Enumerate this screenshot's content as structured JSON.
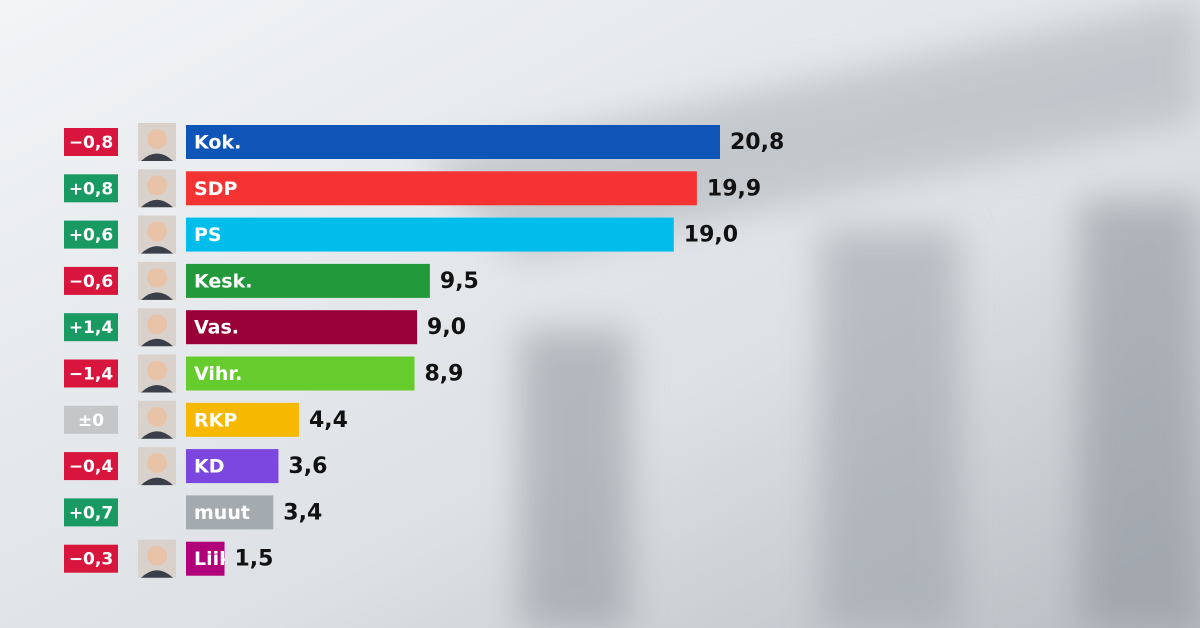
{
  "chart_data": {
    "type": "bar",
    "orientation": "horizontal",
    "categories": [
      "Kok.",
      "SDP",
      "PS",
      "Kesk.",
      "Vas.",
      "Vihr.",
      "RKP",
      "KD",
      "muut",
      "Liik"
    ],
    "values": [
      20.8,
      19.9,
      19.0,
      9.5,
      9.0,
      8.9,
      4.4,
      3.6,
      3.4,
      1.5
    ],
    "value_labels": [
      "20,8",
      "19,9",
      "19,0",
      "9,5",
      "9,0",
      "8,9",
      "4,4",
      "3,6",
      "3,4",
      "1,5"
    ],
    "colors": [
      "#0f55b8",
      "#f53333",
      "#00bdec",
      "#229a3c",
      "#9a0038",
      "#66cc2e",
      "#f6b800",
      "#7c47e0",
      "#a3abb1",
      "#b0007a"
    ],
    "change_values": [
      -0.8,
      0.8,
      0.6,
      -0.6,
      1.4,
      -1.4,
      0,
      -0.4,
      0.7,
      -0.3
    ],
    "change_labels": [
      "−0,8",
      "+0,8",
      "+0,6",
      "−0,6",
      "+1,4",
      "−1,4",
      "±0",
      "−0,4",
      "+0,7",
      "−0,3"
    ],
    "change_colors": {
      "up": "#1a9a63",
      "down": "#d8163d",
      "zero": "#c4c6c8"
    }
  }
}
